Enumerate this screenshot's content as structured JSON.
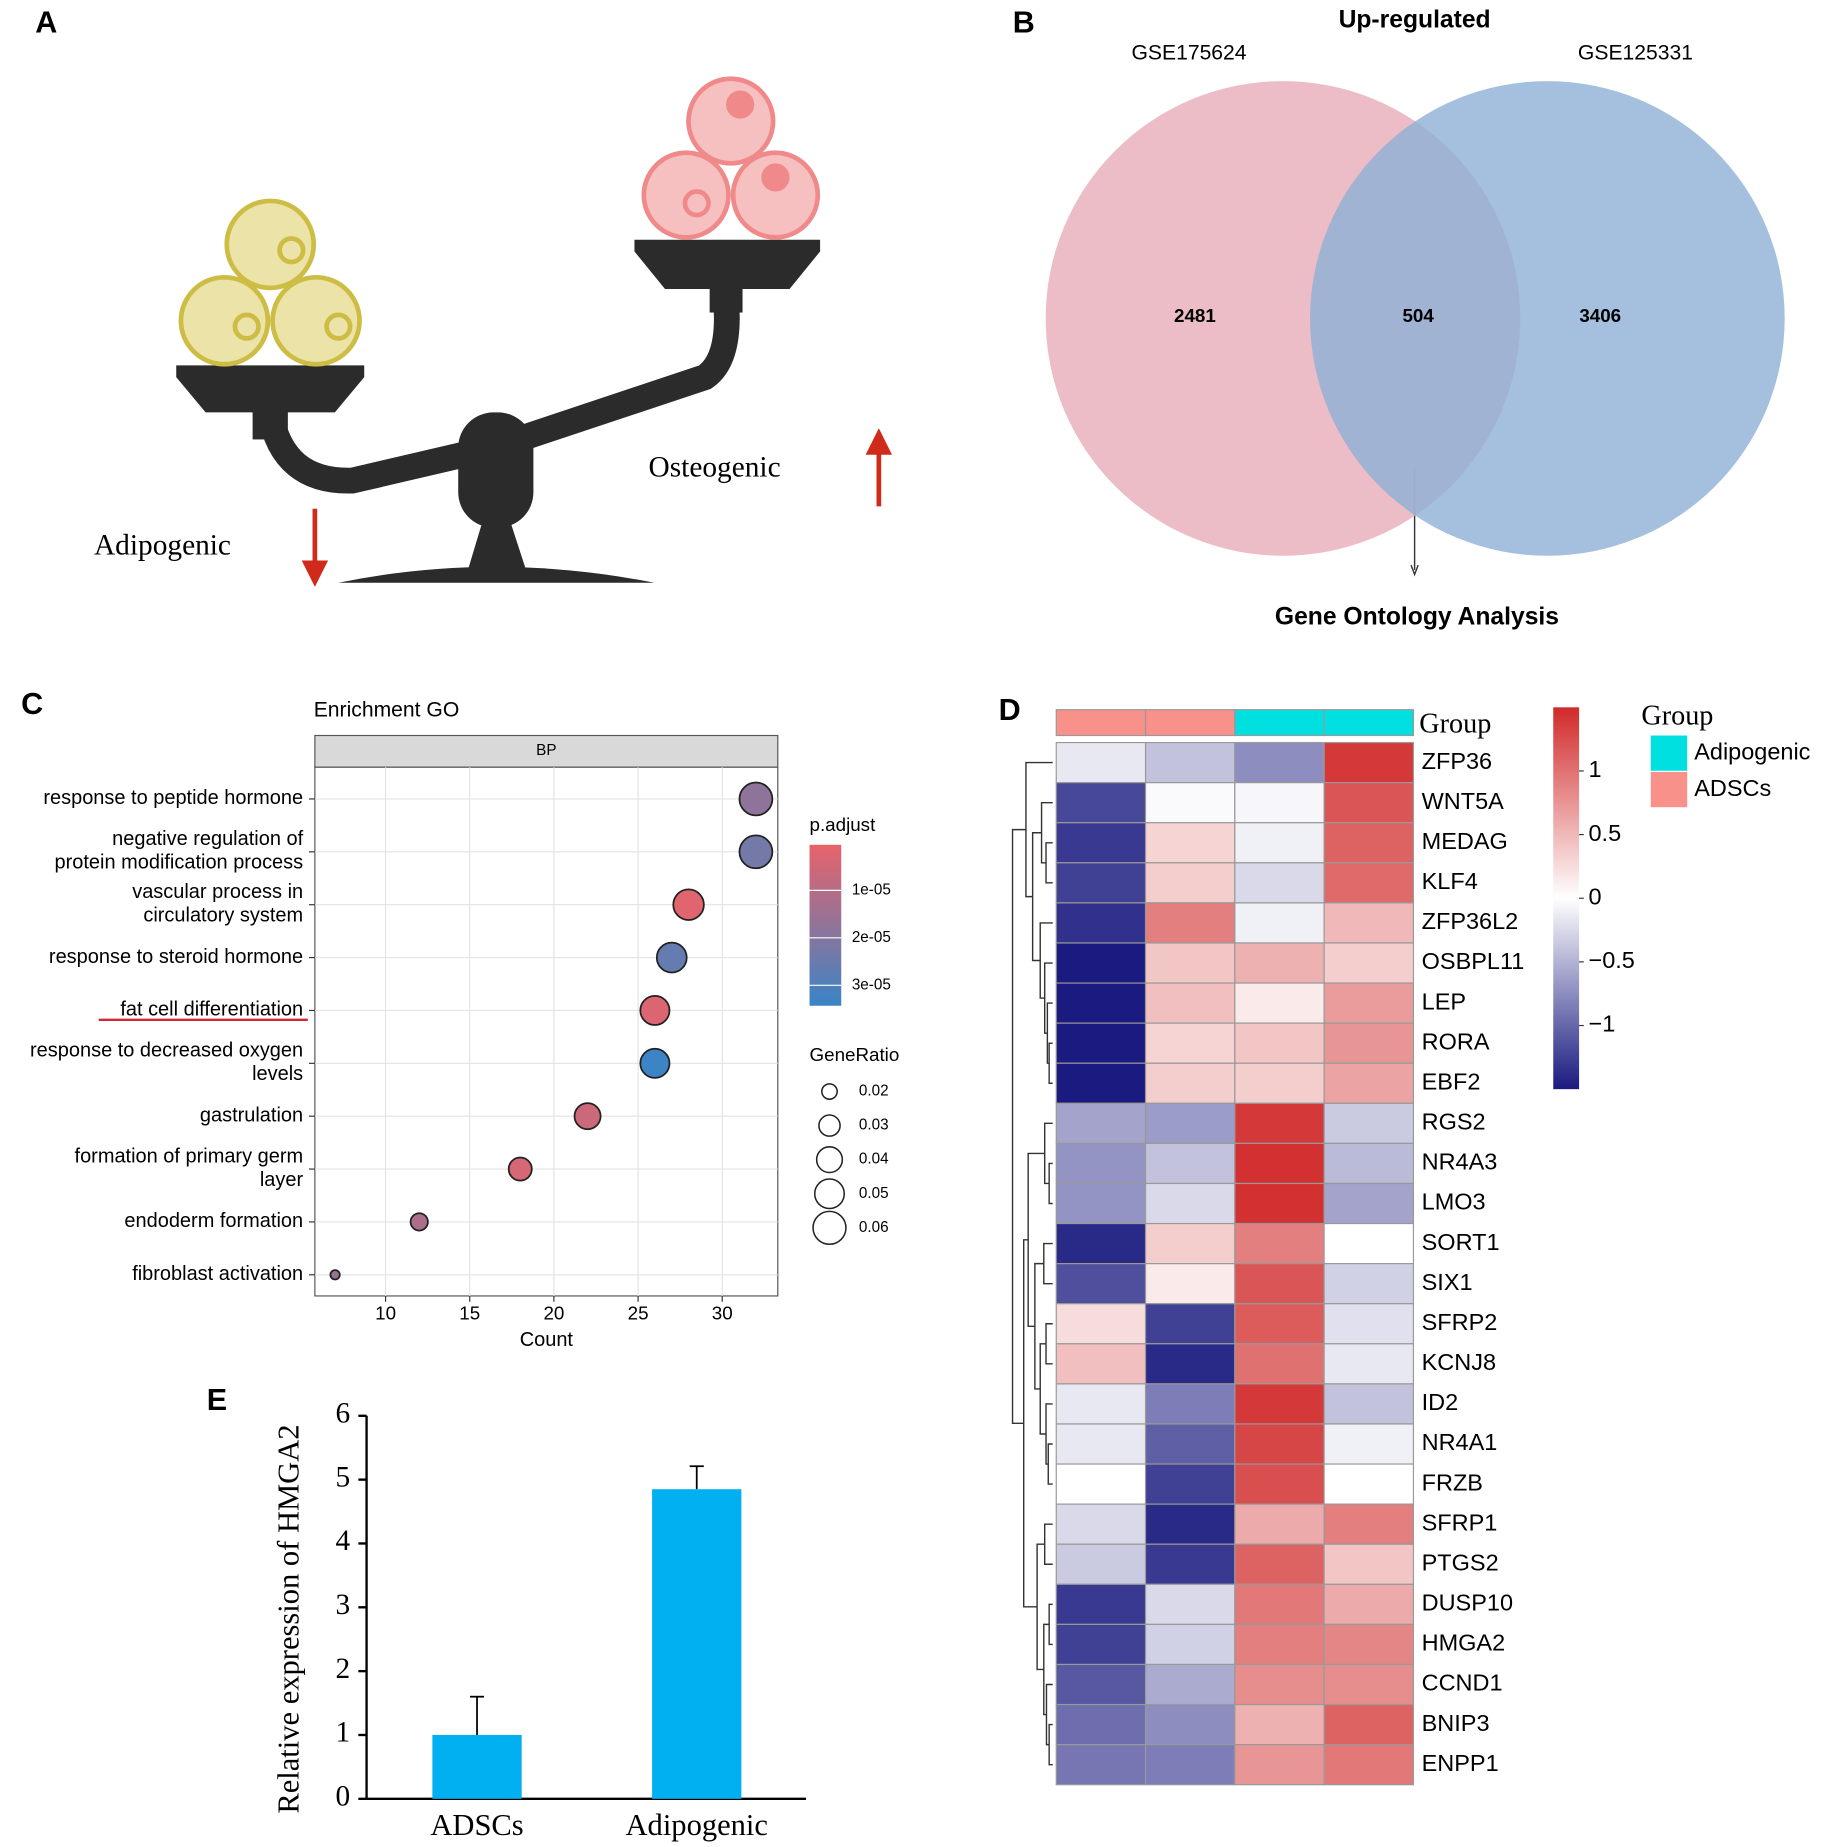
{
  "panel_labels": [
    "A",
    "B",
    "C",
    "D",
    "E"
  ],
  "illustration": {
    "labels": [
      "Adipogenic",
      "Osteogenic"
    ]
  },
  "chart_data": [
    {
      "type": "venn",
      "title": "Up-regulated",
      "series": [
        {
          "name": "GSE175624",
          "color": "#e9b2bd"
        },
        {
          "name": "GSE125331",
          "color": "#8fb0d6"
        }
      ],
      "values": [
        2481,
        504,
        3406
      ],
      "annotation": "Gene Ontology Analysis"
    },
    {
      "type": "dot",
      "title": "Enrichment GO",
      "facet": "BP",
      "categories": [
        "response to peptide hormone",
        "negative regulation of\nprotein modification process",
        "vascular process in\ncirculatory system",
        "response to steroid hormone",
        "fat cell differentiation",
        "response to decreased oxygen\nlevels",
        "gastrulation",
        "formation of primary germ\nlayer",
        "endoderm formation",
        "fibroblast activation"
      ],
      "values": [
        32,
        32,
        28,
        27,
        26,
        26,
        22,
        18,
        12,
        7
      ],
      "sizes": [
        0.06,
        0.06,
        0.053,
        0.051,
        0.049,
        0.049,
        0.041,
        0.034,
        0.023,
        0.013
      ],
      "colors": [
        1.8e-05,
        2.3e-05,
        2e-06,
        2.6e-05,
        3e-06,
        3.4e-05,
        6e-06,
        4e-06,
        1.2e-05,
        1.6e-05
      ],
      "xlim": [
        5.8,
        33.3
      ],
      "xticks": [
        10,
        15,
        20,
        25,
        30
      ],
      "xlabel": "Count",
      "grid": true,
      "color_legend": {
        "title": "p.adjust",
        "lim": [
          4e-07,
          3.43e-05
        ],
        "colors": [
          "#e8636b",
          "#3a84c6"
        ],
        "ticks": [
          {
            "value": 1e-05,
            "label": "1e-05"
          },
          {
            "value": 2e-05,
            "label": "2e-05"
          },
          {
            "value": 3e-05,
            "label": "3e-05"
          }
        ]
      },
      "size_legend": {
        "title": "GeneRatio",
        "ticks": [
          0.02,
          0.03,
          0.04,
          0.05,
          0.06
        ]
      }
    },
    {
      "type": "heatmap",
      "annotation_label": "Group",
      "rows": [
        "ZFP36",
        "WNT5A",
        "MEDAG",
        "KLF4",
        "ZFP36L2",
        "OSBPL11",
        "LEP",
        "RORA",
        "EBF2",
        "RGS2",
        "NR4A3",
        "LMO3",
        "SORT1",
        "SIX1",
        "SFRP2",
        "KCNJ8",
        "ID2",
        "NR4A1",
        "FRZB",
        "SFRP1",
        "PTGS2",
        "DUSP10",
        "HMGA2",
        "CCND1",
        "BNIP3",
        "ENPP1"
      ],
      "groups": [
        "ADSCs",
        "ADSCs",
        "Adipogenic",
        "Adipogenic"
      ],
      "values": [
        [
          -0.15,
          -0.4,
          -0.75,
          1.4
        ],
        [
          -1.2,
          -0.03,
          -0.05,
          1.2
        ],
        [
          -1.3,
          0.3,
          -0.1,
          1.1
        ],
        [
          -1.25,
          0.35,
          -0.25,
          1.05
        ],
        [
          -1.35,
          0.9,
          -0.1,
          0.5
        ],
        [
          -1.5,
          0.4,
          0.55,
          0.35
        ],
        [
          -1.5,
          0.45,
          0.15,
          0.7
        ],
        [
          -1.5,
          0.3,
          0.4,
          0.75
        ],
        [
          -1.5,
          0.35,
          0.35,
          0.65
        ],
        [
          -0.6,
          -0.65,
          1.4,
          -0.35
        ],
        [
          -0.7,
          -0.4,
          1.45,
          -0.45
        ],
        [
          -0.7,
          -0.25,
          1.45,
          -0.6
        ],
        [
          -1.4,
          0.35,
          0.9,
          0.0
        ],
        [
          -1.15,
          0.15,
          1.2,
          -0.3
        ],
        [
          0.25,
          -1.25,
          1.15,
          -0.2
        ],
        [
          0.45,
          -1.4,
          1.0,
          -0.15
        ],
        [
          -0.15,
          -0.85,
          1.4,
          -0.4
        ],
        [
          -0.15,
          -1.05,
          1.3,
          -0.1
        ],
        [
          0.0,
          -1.25,
          1.25,
          0.0
        ],
        [
          -0.25,
          -1.4,
          0.6,
          0.9
        ],
        [
          -0.35,
          -1.3,
          1.1,
          0.4
        ],
        [
          -1.3,
          -0.25,
          0.95,
          0.6
        ],
        [
          -1.25,
          -0.3,
          0.9,
          0.85
        ],
        [
          -1.1,
          -0.55,
          0.8,
          0.8
        ],
        [
          -0.95,
          -0.75,
          0.55,
          1.1
        ],
        [
          -0.9,
          -0.85,
          0.75,
          0.95
        ]
      ],
      "clim": [
        -1.5,
        1.5
      ],
      "colors": [
        "#1a1a80",
        "#ffffff",
        "#d12a2a"
      ],
      "cticks": [
        1,
        0.5,
        0,
        {
          "value": -0.5,
          "label": "−0.5"
        },
        {
          "value": -1,
          "label": "−1"
        }
      ],
      "legend": {
        "title": "Group",
        "series": [
          {
            "name": "Adipogenic",
            "color": "#00e0e0"
          },
          {
            "name": "ADSCs",
            "color": "#f8918a"
          }
        ]
      }
    },
    {
      "type": "bar",
      "categories": [
        "ADSCs",
        "Adipogenic"
      ],
      "values": [
        1,
        4.85
      ],
      "errors": [
        0.6,
        0.36
      ],
      "color": "#00b0f0",
      "ylim": [
        0,
        6
      ],
      "yticks": [
        0,
        1,
        2,
        3,
        4,
        5,
        6
      ],
      "ylabel": "Relative expression of HMGA2"
    }
  ]
}
